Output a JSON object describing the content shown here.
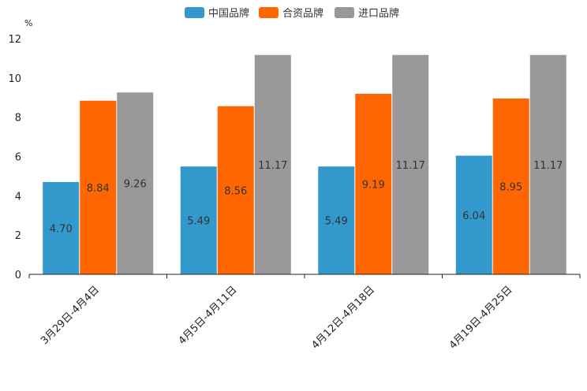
{
  "chart_data": {
    "type": "bar",
    "title": "",
    "xlabel": "",
    "ylabel": "%",
    "ylim": [
      0,
      12
    ],
    "yticks": [
      0,
      2,
      4,
      6,
      8,
      10,
      12
    ],
    "categories": [
      "3月29日-4月4日",
      "4月5日-4月11日",
      "4月12日-4月18日",
      "4月19日-4月25日"
    ],
    "series": [
      {
        "name": "中国品牌",
        "color": "#3399CC",
        "values": [
          4.7,
          5.49,
          5.49,
          6.04
        ],
        "labels": [
          "4.70",
          "5.49",
          "5.49",
          "6.04"
        ]
      },
      {
        "name": "合资品牌",
        "color": "#FF6600",
        "values": [
          8.84,
          8.56,
          9.19,
          8.95
        ],
        "labels": [
          "8.84",
          "8.56",
          "9.19",
          "8.95"
        ]
      },
      {
        "name": "进口品牌",
        "color": "#999999",
        "values": [
          9.26,
          11.17,
          11.17,
          11.17
        ],
        "labels": [
          "9.26",
          "11.17",
          "11.17",
          "11.17"
        ]
      }
    ],
    "legend_position": "top-center",
    "grid": false
  }
}
